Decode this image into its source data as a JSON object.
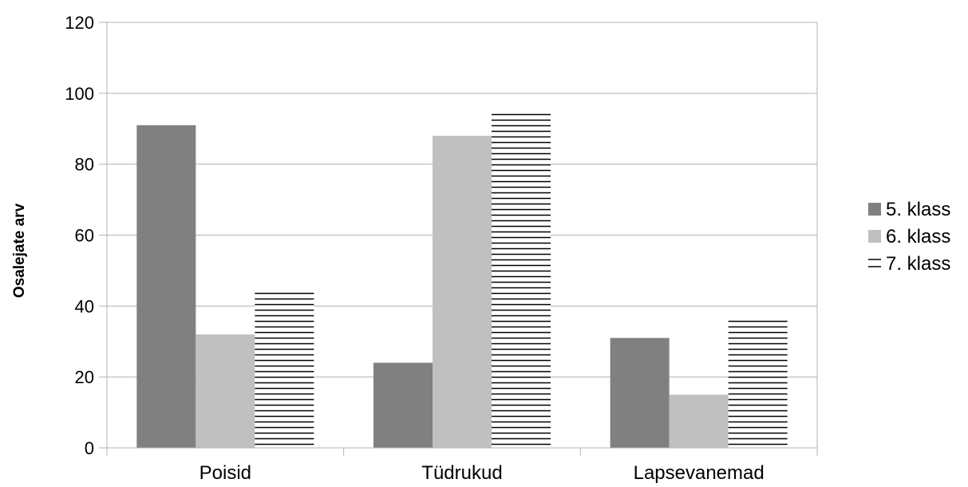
{
  "chart_data": {
    "type": "bar",
    "ylabel": "Osalejate arv",
    "xlabel": "",
    "ylim": [
      0,
      120
    ],
    "yticks": [
      0,
      20,
      40,
      60,
      80,
      100,
      120
    ],
    "categories": [
      "Poisid",
      "Tüdrukud",
      "Lapsevanemad"
    ],
    "series": [
      {
        "name": "5. klass",
        "values": [
          91,
          24,
          31
        ],
        "color": "#808080",
        "pattern": "solid"
      },
      {
        "name": "6. klass",
        "values": [
          32,
          88,
          15
        ],
        "color": "#c0c0c0",
        "pattern": "solid"
      },
      {
        "name": "7. klass",
        "values": [
          44,
          95,
          36
        ],
        "color": "#000000",
        "pattern": "horizontal-lines"
      }
    ],
    "grid": true,
    "legend_position": "right"
  }
}
